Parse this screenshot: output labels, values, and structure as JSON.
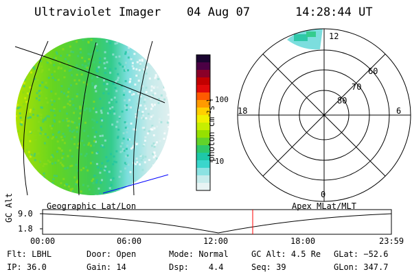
{
  "header": {
    "instrument": "Ultraviolet Imager",
    "date": "04 Aug 07",
    "time": "14:28:44 UT"
  },
  "colorbar": {
    "unit_label": "photon cm",
    "unit_sup1": "−2",
    "unit_s": "s",
    "unit_sup2": "−1",
    "ticks": [
      "100",
      "10"
    ],
    "colors": [
      "#1a0530",
      "#4b0044",
      "#8a0028",
      "#c20000",
      "#e00a0a",
      "#ff5a00",
      "#ff9a00",
      "#ffcf00",
      "#f0f000",
      "#c6ee00",
      "#96e000",
      "#62d32a",
      "#2ec86a",
      "#1ec8a8",
      "#3ad6cc",
      "#8ce2e2",
      "#c8ecec",
      "#e8f4f4"
    ]
  },
  "polar_plot": {
    "mlt_labels": {
      "top": "12",
      "left": "18",
      "right": "6",
      "bottom": "0"
    },
    "lat_labels": [
      "60",
      "70",
      "80"
    ]
  },
  "map_labels": {
    "left": "Geographic Lat/Lon",
    "right": "Apex MLat/MLT"
  },
  "timeline": {
    "ylabel": "GC Alt",
    "y_ticks": [
      "9.0",
      "1.8"
    ],
    "x_ticks": [
      "00:00",
      "06:00",
      "12:00",
      "18:00",
      "23:59"
    ],
    "marker_time": "14:28"
  },
  "status": {
    "filter_label": "Flt:",
    "filter_value": "LBHL",
    "ip_label": "IP:",
    "ip_value": "36.0",
    "door_label": "Door:",
    "door_value": "Open",
    "gain_label": "Gain:",
    "gain_value": "14",
    "mode_label": "Mode:",
    "mode_value": "Normal",
    "dsp_label": "Dsp:",
    "dsp_value": "4.4",
    "gcalt_label": "GC Alt:",
    "gcalt_value": "4.5 Re",
    "seq_label": "Seq:",
    "seq_value": "39",
    "glat_label": "GLat:",
    "glat_value": "−52.6",
    "glon_label": "GLon:",
    "glon_value": "347.7"
  }
}
